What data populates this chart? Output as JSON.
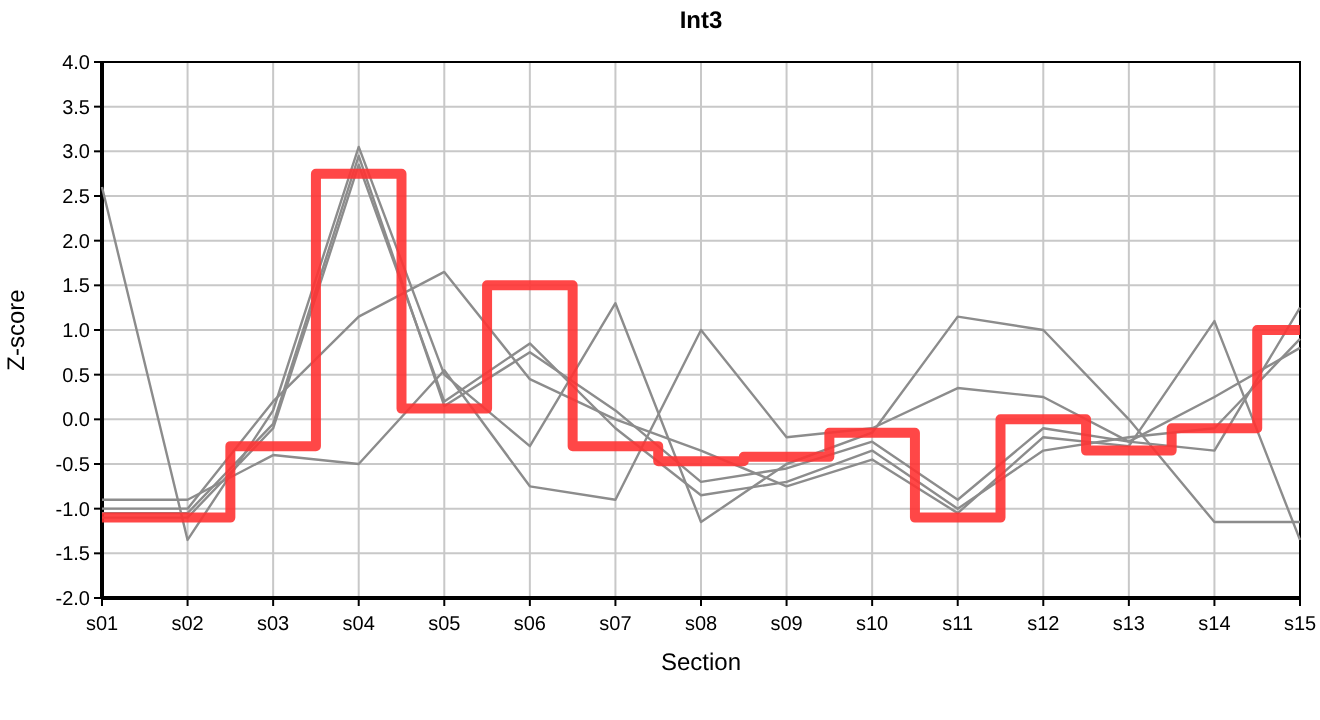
{
  "chart_data": {
    "type": "line",
    "title": "Int3",
    "xlabel": "Section",
    "ylabel": "Z-score",
    "categories": [
      "s01",
      "s02",
      "s03",
      "s04",
      "s05",
      "s06",
      "s07",
      "s08",
      "s09",
      "s10",
      "s11",
      "s12",
      "s13",
      "s14",
      "s15"
    ],
    "ylim": [
      -2,
      4
    ],
    "yticks": [
      {
        "value": -2,
        "label": "-2.0"
      },
      {
        "value": -1.5,
        "label": "-1.5"
      },
      {
        "value": -1,
        "label": "-1.0"
      },
      {
        "value": -0.5,
        "label": "-0.5"
      },
      {
        "value": 0,
        "label": "0.0"
      },
      {
        "value": 0.5,
        "label": "0.5"
      },
      {
        "value": 1,
        "label": "1.0"
      },
      {
        "value": 1.5,
        "label": "1.5"
      },
      {
        "value": 2,
        "label": "2.0"
      },
      {
        "value": 2.5,
        "label": "2.5"
      },
      {
        "value": 3,
        "label": "3.0"
      },
      {
        "value": 3.5,
        "label": "3.5"
      },
      {
        "value": 4,
        "label": "4.0"
      }
    ],
    "grid": true,
    "marker": "none",
    "line_style": "solid",
    "series": [
      {
        "color": "#8c8c8c",
        "values": [
          2.6,
          -1.35,
          0.1,
          3.05,
          0.5,
          -0.3,
          1.3,
          -1.15,
          -0.5,
          -0.15,
          1.15,
          1.0,
          0.0,
          -1.15,
          -1.15
        ]
      },
      {
        "color": "#8c8c8c",
        "values": [
          -0.9,
          -0.9,
          -0.4,
          -0.5,
          0.55,
          -0.75,
          -0.9,
          1.0,
          -0.2,
          -0.1,
          0.35,
          0.25,
          -0.25,
          0.25,
          0.8
        ]
      },
      {
        "color": "#8c8c8c",
        "values": [
          -1.0,
          -1.0,
          0.2,
          1.15,
          1.65,
          0.45,
          0.0,
          -0.35,
          -0.75,
          -0.45,
          -1.05,
          -0.2,
          -0.3,
          1.1,
          -1.35
        ]
      },
      {
        "color": "#8c8c8c",
        "values": [
          -1.05,
          -1.05,
          -0.05,
          2.95,
          0.15,
          0.75,
          0.1,
          -0.7,
          -0.55,
          -0.25,
          -0.9,
          -0.1,
          -0.25,
          -0.35,
          1.25
        ]
      },
      {
        "color": "#8c8c8c",
        "values": [
          -1.1,
          -1.1,
          -0.1,
          2.85,
          0.2,
          0.85,
          -0.1,
          -0.85,
          -0.7,
          -0.35,
          -1.0,
          -0.35,
          -0.2,
          -0.1,
          0.9
        ]
      },
      {
        "type": "step",
        "color": "#ff3333",
        "values": [
          -1.1,
          -1.1,
          -0.3,
          2.75,
          0.12,
          1.5,
          -0.3,
          -0.47,
          -0.42,
          -0.15,
          -1.1,
          0.0,
          -0.35,
          -0.1,
          1.0
        ]
      }
    ]
  }
}
